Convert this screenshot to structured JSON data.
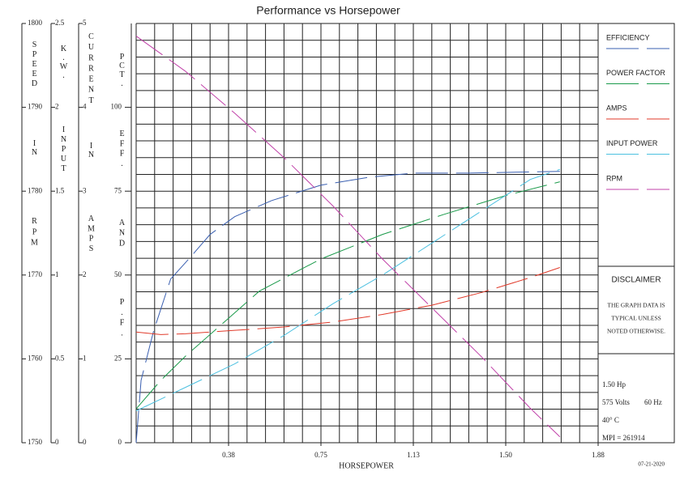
{
  "chart_data": {
    "type": "line",
    "title": "Performance vs Horsepower",
    "xlabel": "HORSEPOWER",
    "date": "07-21-2020",
    "xlim": [
      0,
      1.875
    ],
    "xticks": [
      {
        "value": 0.375,
        "label": "0.38"
      },
      0.75,
      {
        "value": 1.125,
        "label": "1.13"
      },
      {
        "value": 1.5,
        "label": "1.50"
      },
      {
        "value": 1.875,
        "label": "1.88"
      }
    ],
    "x_grid_step": 0.075,
    "y_grid_step": 5,
    "y_axes": {
      "speed": {
        "title": [
          "SPEED",
          "IN",
          "RPM"
        ],
        "lim": [
          1750,
          1800
        ],
        "ticks": [
          1750,
          1760,
          1770,
          1780,
          1790,
          1800
        ]
      },
      "kw": {
        "title": [
          "K.W.",
          "INPUT"
        ],
        "lim": [
          0,
          2.5
        ],
        "ticks": [
          0,
          0.5,
          1,
          1.5,
          2,
          2.5
        ]
      },
      "current": {
        "title": [
          "CURRENT",
          "IN",
          "AMPS"
        ],
        "lim": [
          0,
          5
        ],
        "ticks": [
          0,
          1,
          2,
          3,
          4,
          5
        ]
      },
      "pct": {
        "title": [
          "PCT.",
          "EFF.",
          "AND",
          "P.F."
        ],
        "lim": [
          0,
          125
        ],
        "ticks": [
          0,
          25,
          50,
          75,
          100
        ]
      }
    },
    "series": [
      {
        "name": "EFFICIENCY",
        "color": "#3a5fb0",
        "axis": "pct",
        "x": [
          0,
          0.02,
          0.07,
          0.14,
          0.22,
          0.3,
          0.4,
          0.55,
          0.75,
          0.95,
          1.13,
          1.35,
          1.72
        ],
        "values": [
          0,
          18.6,
          33.1,
          48.8,
          55.3,
          62.1,
          67.4,
          72.2,
          76.8,
          79.2,
          80.4,
          80.4,
          80.9
        ]
      },
      {
        "name": "POWER FACTOR",
        "color": "#1a9a4a",
        "axis": "pct",
        "x": [
          0,
          0.1,
          0.2,
          0.35,
          0.5,
          0.75,
          1.0,
          1.25,
          1.5,
          1.72
        ],
        "values": [
          10.1,
          18.6,
          25.8,
          35.5,
          45.2,
          54.8,
          62.1,
          68.1,
          73.7,
          77.8
        ]
      },
      {
        "name": "AMPS",
        "color": "#e03a2a",
        "axis": "current",
        "x": [
          0,
          0.1,
          0.2,
          0.4,
          0.6,
          0.8,
          1.0,
          1.2,
          1.4,
          1.6,
          1.72
        ],
        "values": [
          1.32,
          1.29,
          1.3,
          1.34,
          1.38,
          1.44,
          1.53,
          1.64,
          1.79,
          1.97,
          2.09
        ]
      },
      {
        "name": "INPUT POWER",
        "color": "#4cc0e0",
        "axis": "kw",
        "x": [
          0,
          0.2,
          0.4,
          0.6,
          0.8,
          1.0,
          1.2,
          1.4,
          1.6,
          1.72
        ],
        "values": [
          0.19,
          0.33,
          0.47,
          0.64,
          0.83,
          1.0,
          1.19,
          1.38,
          1.57,
          1.63
        ]
      },
      {
        "name": "RPM",
        "color": "#c040a8",
        "axis": "speed",
        "x": [
          0,
          0.2,
          0.4,
          0.6,
          0.8,
          1.0,
          1.2,
          1.4,
          1.6,
          1.72
        ],
        "values": [
          1798.5,
          1794.3,
          1789.3,
          1784.0,
          1778.2,
          1771.9,
          1766.1,
          1760.3,
          1754.1,
          1750.7
        ]
      }
    ],
    "disclaimer": {
      "title": "DISCLAIMER",
      "lines": [
        "THE GRAPH DATA IS",
        "TYPICAL UNLESS",
        "NOTED OTHERWISE."
      ]
    },
    "info": {
      "hp": "1.50 Hp",
      "volts": "575 Volts",
      "hz": "60 Hz",
      "temp": "40° C",
      "mpi": "MPI = 261914"
    }
  }
}
